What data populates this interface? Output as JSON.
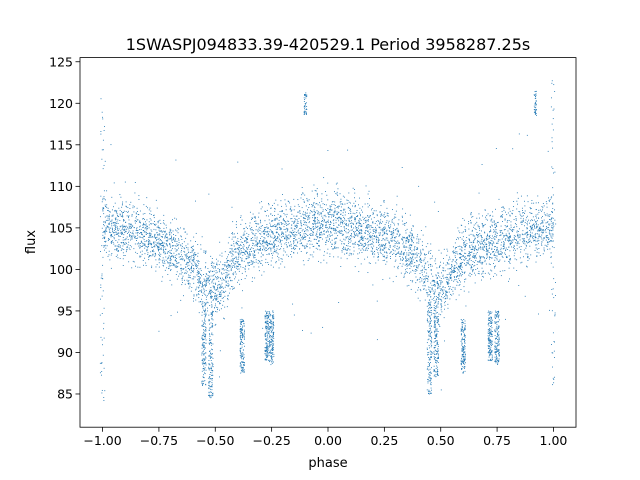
{
  "chart_data": {
    "type": "scatter",
    "title": "1SWASPJ094833.39-420529.1 Period 3958287.25s",
    "xlabel": "phase",
    "ylabel": "flux",
    "xlim": [
      -1.1,
      1.1
    ],
    "ylim": [
      81,
      125.5
    ],
    "xticks": [
      -1.0,
      -0.75,
      -0.5,
      -0.25,
      0.0,
      0.25,
      0.5,
      0.75,
      1.0
    ],
    "xtick_labels": [
      "−1.00",
      "−0.75",
      "−0.50",
      "−0.25",
      "0.00",
      "0.25",
      "0.50",
      "0.75",
      "1.00"
    ],
    "yticks": [
      85,
      90,
      95,
      100,
      105,
      110,
      115,
      120,
      125
    ],
    "ytick_labels": [
      "85",
      "90",
      "95",
      "100",
      "105",
      "110",
      "115",
      "120",
      "125"
    ],
    "grid": false,
    "color": "#1f77b4",
    "light_curve": {
      "phase": [
        -1.0,
        -0.9,
        -0.8,
        -0.7,
        -0.6,
        -0.55,
        -0.5,
        -0.45,
        -0.4,
        -0.3,
        -0.2,
        -0.1,
        0.0,
        0.1,
        0.2,
        0.3,
        0.4,
        0.45,
        0.5,
        0.55,
        0.6,
        0.7,
        0.8,
        0.9,
        1.0
      ],
      "median_flux": [
        105,
        104.8,
        104,
        102.5,
        100.5,
        98.5,
        97.5,
        99.5,
        102,
        103.5,
        104.5,
        105.2,
        105.5,
        105.2,
        104.5,
        103.5,
        101,
        98.5,
        97.5,
        99.5,
        102,
        103,
        104,
        104.8,
        105
      ],
      "scatter": 2.6
    },
    "dip_features": [
      {
        "phase": -0.55,
        "flux_min": 86,
        "flux_max": 96
      },
      {
        "phase": -0.52,
        "flux_min": 84.5,
        "flux_max": 95
      },
      {
        "phase": -0.38,
        "flux_min": 87.5,
        "flux_max": 94
      },
      {
        "phase": -0.27,
        "flux_min": 89,
        "flux_max": 95
      },
      {
        "phase": -0.25,
        "flux_min": 88.5,
        "flux_max": 95
      },
      {
        "phase": 0.45,
        "flux_min": 85,
        "flux_max": 96
      },
      {
        "phase": 0.48,
        "flux_min": 87,
        "flux_max": 95
      },
      {
        "phase": 0.6,
        "flux_min": 87.5,
        "flux_max": 94
      },
      {
        "phase": 0.72,
        "flux_min": 89,
        "flux_max": 95
      },
      {
        "phase": 0.75,
        "flux_min": 88.5,
        "flux_max": 95
      }
    ],
    "spike_features": [
      {
        "phase": -0.1,
        "flux_min": 118.5,
        "flux_max": 121.5
      },
      {
        "phase": 0.92,
        "flux_min": 118.5,
        "flux_max": 121.5
      }
    ]
  }
}
